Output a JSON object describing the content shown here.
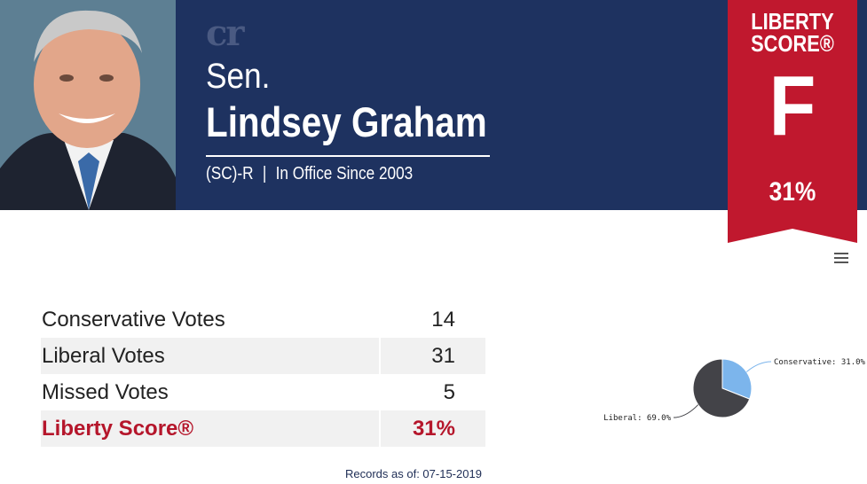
{
  "header": {
    "logo": "cr",
    "honorific": "Sen.",
    "name": "Lindsey Graham",
    "party_state": "(SC)-R",
    "separator": "|",
    "in_office": "In Office Since 2003"
  },
  "ribbon": {
    "title_line1": "LIBERTY",
    "title_line2": "SCORE®",
    "grade": "F",
    "percent": "31%"
  },
  "menu": {
    "icon": "hamburger-menu-icon"
  },
  "votes": [
    {
      "label": "Conservative Votes",
      "value": "14"
    },
    {
      "label": "Liberal Votes",
      "value": "31"
    },
    {
      "label": "Missed Votes",
      "value": "5"
    },
    {
      "label": "Liberty Score®",
      "value": "31%"
    }
  ],
  "records_note": "Records as of: 07-15-2019",
  "colors": {
    "banner": "#1e3260",
    "ribbon": "#c0182e",
    "score_text": "#b5162b",
    "conservative_slice": "#7cb5ec",
    "liberal_slice": "#434348"
  },
  "chart_data": {
    "type": "pie",
    "series": [
      {
        "name": "Conservative",
        "value": 31.0,
        "label": "Conservative: 31.0%"
      },
      {
        "name": "Liberal",
        "value": 69.0,
        "label": "Liberal: 69.0%"
      }
    ]
  }
}
